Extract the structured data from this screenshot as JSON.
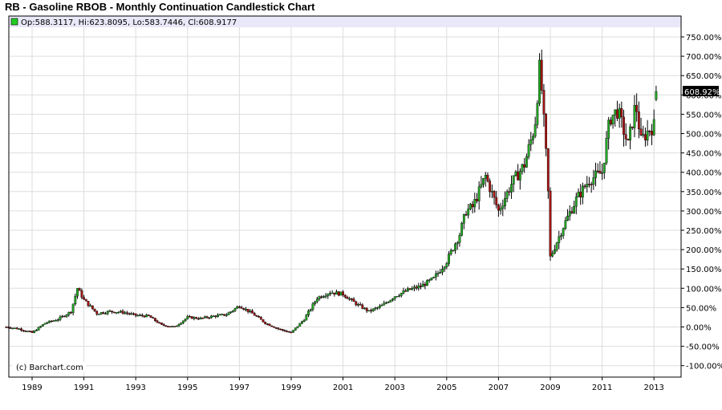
{
  "title": "RB - Gasoline RBOB - Monthly Continuation Candlestick Chart",
  "info_line": "Op:588.3117, Hi:623.8095, Lo:583.7446, Cl:608.9177",
  "credit": "(c) Barchart.com",
  "last_value_label": "608.92%",
  "colors": {
    "up": "#22aa22",
    "down": "#aa1111",
    "info_bg": "#e8e8f8",
    "info_marker": "#22cc22",
    "last_label_bg": "#000000",
    "grid": "#dddddd",
    "frame": "#000000"
  },
  "chart_data": {
    "type": "candlestick",
    "title": "RB - Gasoline RBOB - Monthly Continuation Candlestick Chart",
    "xlabel": "",
    "ylabel": "",
    "x_ticks": [
      "1989",
      "1991",
      "1993",
      "1995",
      "1997",
      "1999",
      "2001",
      "2003",
      "2005",
      "2007",
      "2009",
      "2011",
      "2013"
    ],
    "y_ticks": [
      "750.00%",
      "700.00%",
      "650.00%",
      "600.00%",
      "550.00%",
      "500.00%",
      "450.00%",
      "400.00%",
      "350.00%",
      "300.00%",
      "250.00%",
      "200.00%",
      "150.00%",
      "100.00%",
      "50.00%",
      "0.00%",
      "-50.00%",
      "-100.00%"
    ],
    "ylim": [
      -110,
      770
    ],
    "xlim": [
      1988.0,
      2013.9
    ],
    "grid": true,
    "last": {
      "open": 588.3117,
      "high": 623.8095,
      "low": 583.7446,
      "close": 608.9177
    },
    "series": [
      {
        "name": "RB",
        "unit": "percent change",
        "x": [
          1988.0,
          1988.5,
          1989.0,
          1989.5,
          1990.0,
          1990.5,
          1990.75,
          1991.0,
          1991.5,
          1992.0,
          1992.5,
          1993.0,
          1993.5,
          1994.0,
          1994.5,
          1995.0,
          1995.5,
          1996.0,
          1996.5,
          1997.0,
          1997.5,
          1998.0,
          1998.5,
          1999.0,
          1999.5,
          2000.0,
          2000.5,
          2001.0,
          2001.5,
          2002.0,
          2002.5,
          2003.0,
          2003.5,
          2004.0,
          2004.5,
          2005.0,
          2005.5,
          2005.75,
          2006.0,
          2006.5,
          2007.0,
          2007.5,
          2008.0,
          2008.4,
          2008.6,
          2008.9,
          2009.0,
          2009.5,
          2010.0,
          2010.5,
          2011.0,
          2011.3,
          2011.6,
          2012.0,
          2012.3,
          2012.5,
          2012.8,
          2013.0,
          2013.1
        ],
        "values": [
          0,
          -5,
          -15,
          10,
          20,
          40,
          100,
          70,
          35,
          40,
          38,
          30,
          28,
          5,
          0,
          25,
          22,
          28,
          32,
          55,
          35,
          10,
          -5,
          -15,
          20,
          75,
          90,
          85,
          60,
          40,
          55,
          80,
          95,
          105,
          125,
          170,
          240,
          300,
          310,
          390,
          300,
          370,
          420,
          520,
          680,
          380,
          180,
          260,
          330,
          380,
          400,
          540,
          560,
          470,
          580,
          480,
          510,
          520,
          609
        ]
      }
    ]
  }
}
